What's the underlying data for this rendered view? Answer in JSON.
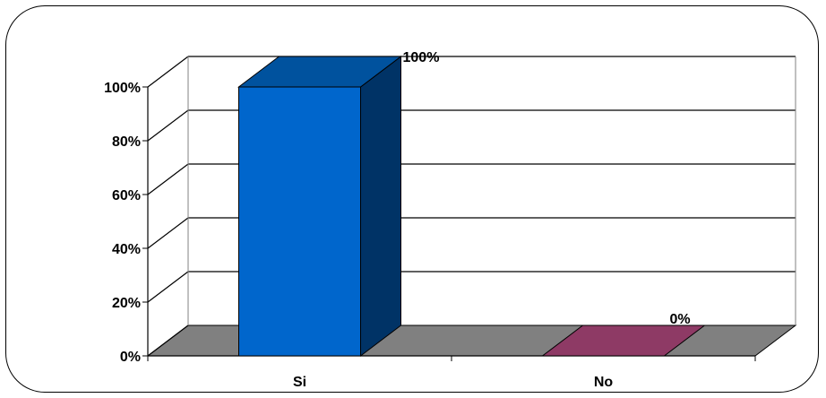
{
  "chart_data": {
    "type": "bar",
    "title": "",
    "xlabel": "",
    "ylabel": "",
    "categories": [
      "Si",
      "No"
    ],
    "values": [
      100,
      0
    ],
    "value_labels": [
      "100%",
      "0%"
    ],
    "y_ticks": [
      "0%",
      "20%",
      "40%",
      "60%",
      "80%",
      "100%"
    ],
    "ylim": [
      0,
      100
    ],
    "grid": true,
    "legend": "none",
    "style": "3d-column",
    "colors": {
      "bars": [
        "#0066CC",
        "#722A4F"
      ],
      "bar_sides": [
        "#003366",
        "#3C1026"
      ],
      "bar_tops": [
        "#00529E",
        "#8E3A65"
      ],
      "floor": "#808080",
      "wall": "#ffffff"
    }
  }
}
